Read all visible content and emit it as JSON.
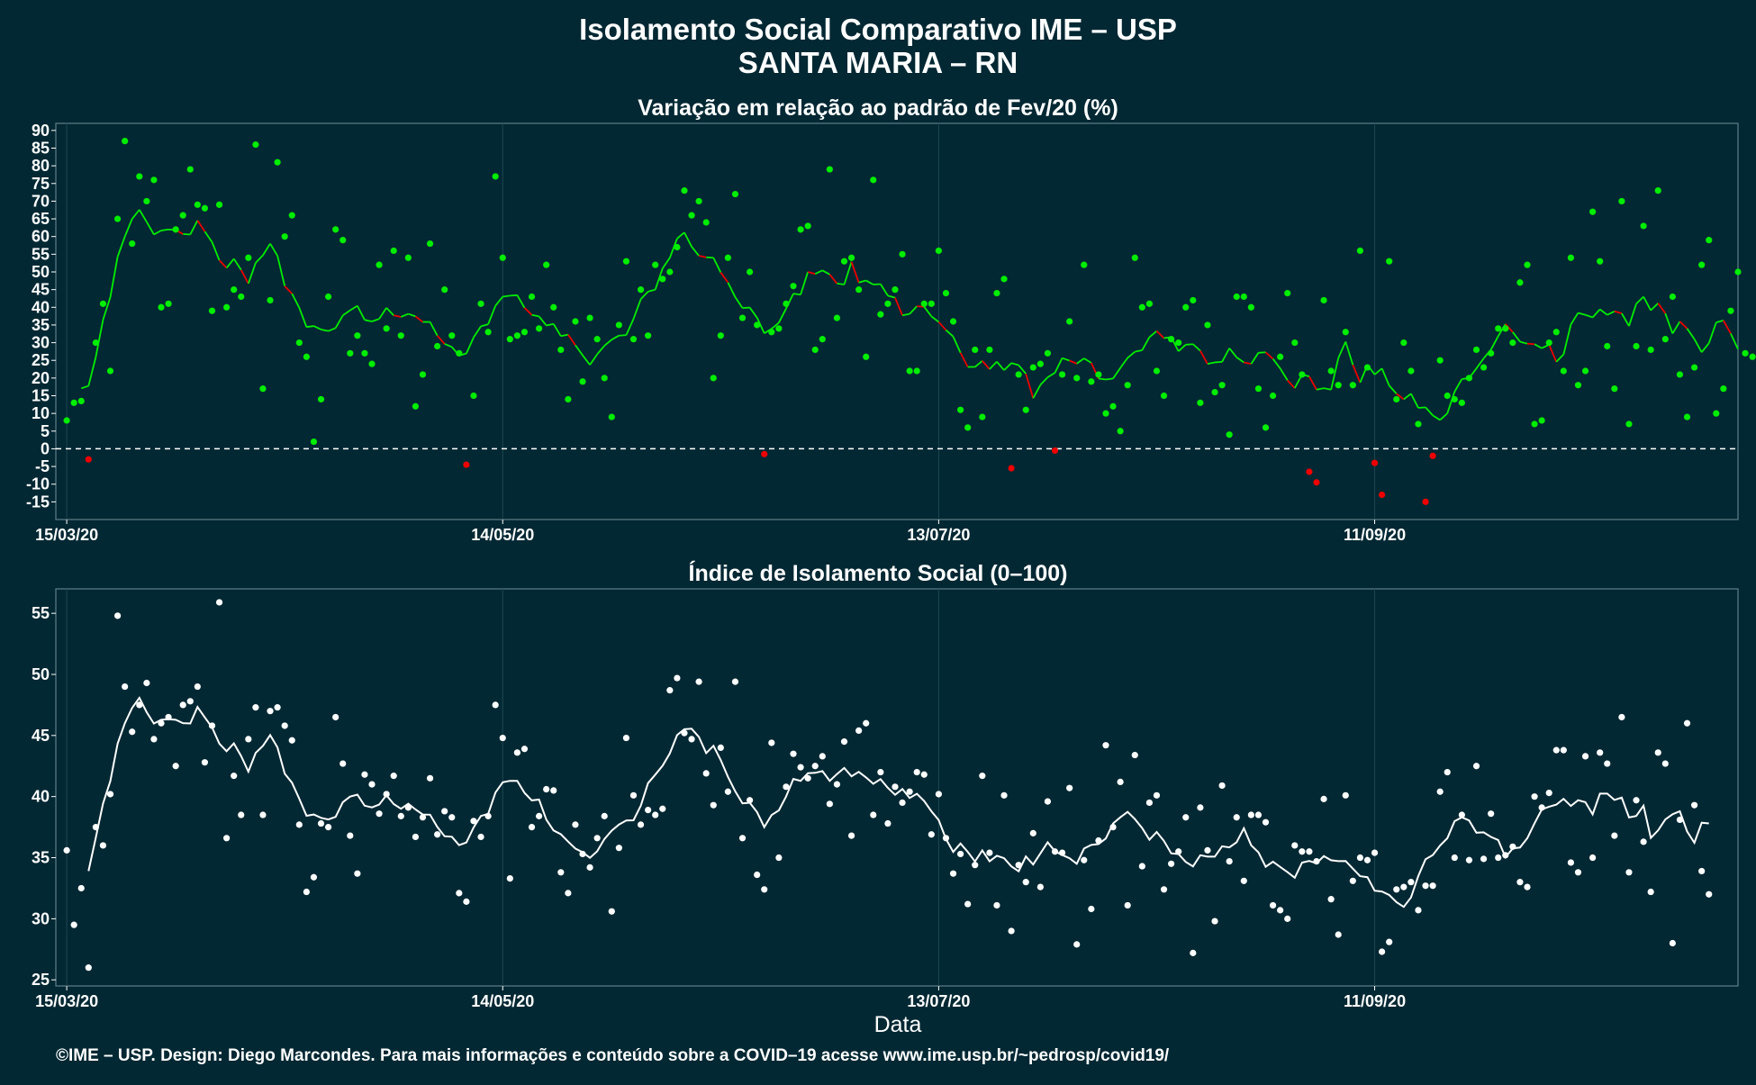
{
  "title_line1": "Isolamento Social Comparativo IME – USP",
  "title_line2": "SANTA MARIA – RN",
  "footer": "©IME – USP. Design: Diego Marcondes. Para mais informações e conteúdo sobre a COVID–19 acesse www.ime.usp.br/~pedrosp/covid19/",
  "colors": {
    "background": "#022833",
    "green": "#00ee00",
    "red": "#ee0000",
    "white": "#ffffff"
  },
  "chart_data": [
    {
      "type": "scatter",
      "title": "Variação em relação ao padrão de Fev/20 (%)",
      "xlabel": "",
      "ylabel": "",
      "x_start": "15/03/20",
      "x_ticks": [
        "15/03/20",
        "14/05/20",
        "13/07/20",
        "11/09/20"
      ],
      "x_tick_days": [
        0,
        60,
        120,
        180
      ],
      "xlim_days": [
        -1.5,
        230
      ],
      "ylim": [
        -20,
        92
      ],
      "y_ticks": [
        90,
        85,
        80,
        75,
        70,
        65,
        60,
        55,
        50,
        45,
        40,
        35,
        30,
        25,
        20,
        15,
        10,
        5,
        0,
        -5,
        -10,
        -15
      ],
      "reference_line": 0,
      "point_color_rule": "green if value >= 0 else red",
      "values": [
        8,
        13,
        13.5,
        -3,
        30,
        41,
        22,
        65,
        87,
        58,
        77,
        70,
        76,
        40,
        41,
        62,
        66,
        79,
        69,
        68,
        39,
        69,
        40,
        45,
        43,
        54,
        86,
        17,
        42,
        81,
        60,
        66,
        30,
        26,
        2,
        14,
        43,
        62,
        59,
        27,
        32,
        27,
        24,
        52,
        34,
        56,
        32,
        54,
        12,
        21,
        58,
        29,
        45,
        32,
        27,
        -4.5,
        15,
        41,
        33,
        77,
        54,
        31,
        32,
        33,
        43,
        34,
        52,
        40,
        28,
        14,
        36,
        19,
        37,
        31,
        20,
        9,
        35,
        53,
        31,
        45,
        32,
        52,
        48,
        50,
        57,
        73,
        66,
        70,
        64,
        20,
        32,
        54,
        72,
        37,
        50,
        35,
        -1.5,
        33,
        34,
        41,
        46,
        62,
        63,
        28,
        31,
        79,
        37,
        53,
        54,
        45,
        26,
        76,
        38,
        41,
        45,
        55,
        22,
        22,
        41,
        41,
        56,
        44,
        36,
        11,
        6,
        28,
        9,
        28,
        44,
        48,
        -5.5,
        21,
        11,
        23,
        24,
        27,
        -0.5,
        21,
        36,
        20,
        52,
        19,
        21,
        10,
        12,
        5,
        18,
        54,
        40,
        41,
        22,
        15,
        31,
        30,
        40,
        42,
        13,
        35,
        16,
        18,
        4,
        43,
        43,
        40,
        17,
        6,
        15,
        26,
        44,
        30,
        21,
        -6.5,
        -9.5,
        42,
        22,
        18,
        33,
        18,
        56,
        23,
        -4,
        -13,
        53,
        14,
        30,
        22,
        7,
        -15,
        -2,
        25,
        15,
        14,
        13,
        20,
        28,
        23,
        27,
        34,
        34,
        30,
        47,
        52,
        7,
        8,
        30,
        33,
        22,
        54,
        18,
        22,
        67,
        53,
        29,
        17,
        70,
        7,
        29,
        63,
        28,
        73,
        31,
        43,
        21,
        9,
        23,
        52,
        59,
        10,
        17,
        39,
        50,
        27,
        26
      ]
    },
    {
      "type": "scatter",
      "title": "Índice de Isolamento Social (0–100)",
      "xlabel": "Data",
      "ylabel": "",
      "x_start": "15/03/20",
      "x_ticks": [
        "15/03/20",
        "14/05/20",
        "13/07/20",
        "11/09/20"
      ],
      "x_tick_days": [
        0,
        60,
        120,
        180
      ],
      "xlim_days": [
        -1.5,
        230
      ],
      "ylim": [
        24.5,
        57
      ],
      "y_ticks": [
        55,
        50,
        45,
        40,
        35,
        30,
        25
      ],
      "values": [
        35.6,
        29.5,
        32.5,
        26,
        37.5,
        36,
        40.2,
        54.8,
        49,
        45.3,
        47.5,
        49.3,
        44.7,
        46,
        46.5,
        42.5,
        47.5,
        47.8,
        49,
        42.8,
        45.8,
        55.9,
        36.6,
        41.7,
        38.5,
        44.7,
        47.3,
        38.5,
        47,
        47.3,
        45.8,
        44.6,
        37.7,
        32.2,
        33.4,
        37.8,
        37.5,
        46.5,
        42.7,
        36.8,
        33.7,
        41.8,
        41,
        38.6,
        40.2,
        41.7,
        38.4,
        39.1,
        36.7,
        38.3,
        41.5,
        36.9,
        38.8,
        38.3,
        32.1,
        31.4,
        38,
        36.7,
        38.4,
        47.5,
        44.8,
        33.3,
        43.6,
        43.9,
        37.5,
        38.4,
        40.6,
        40.5,
        33.8,
        32.1,
        37.7,
        35.3,
        34.2,
        36.6,
        38.4,
        30.6,
        35.8,
        44.8,
        40.1,
        37.7,
        38.9,
        38.5,
        39,
        48.7,
        49.7,
        45.2,
        44.7,
        49.4,
        41.9,
        39.3,
        44,
        40.4,
        49.4,
        36.6,
        39.7,
        33.6,
        32.4,
        44.4,
        35,
        40.8,
        43.5,
        42.4,
        41.5,
        42.5,
        43.3,
        39.4,
        41,
        44.5,
        36.8,
        45.4,
        46,
        38.5,
        42,
        37.8,
        40.8,
        39.5,
        40.4,
        42,
        41.8,
        36.9,
        40.2,
        36.6,
        33.7,
        35.3,
        31.2,
        34.4,
        41.7,
        35.4,
        31.1,
        40.1,
        29,
        34.4,
        33,
        37,
        32.6,
        39.6,
        35.5,
        35.4,
        40.7,
        27.9,
        34.8,
        30.8,
        36.4,
        44.2,
        37.5,
        41.2,
        31.1,
        43.4,
        34.3,
        39.5,
        40.1,
        32.4,
        34.5,
        35.5,
        38.3,
        27.2,
        39.1,
        35.6,
        29.8,
        40.9,
        34.7,
        38.3,
        33.1,
        38.5,
        38.5,
        37.9,
        31.1,
        30.7,
        30,
        36,
        35.5,
        35.5,
        34.7,
        39.8,
        31.6,
        28.7,
        40.1,
        33.1,
        35,
        34.8,
        35.4,
        27.3,
        28.1,
        32.4,
        32.6,
        33,
        30.7,
        32.7,
        32.7,
        40.4,
        42,
        35,
        38.5,
        34.8,
        42.5,
        34.9,
        38.6,
        35,
        35.2,
        35.9,
        33,
        32.6,
        40,
        39.1,
        40.3,
        43.8,
        43.8,
        34.6,
        33.8,
        43.3,
        35,
        43.6,
        42.7,
        36.8,
        46.5,
        33.8,
        39.7,
        36.3,
        32.2,
        43.6,
        42.7,
        28,
        38.1,
        46,
        39.3,
        33.9,
        32
      ]
    }
  ]
}
